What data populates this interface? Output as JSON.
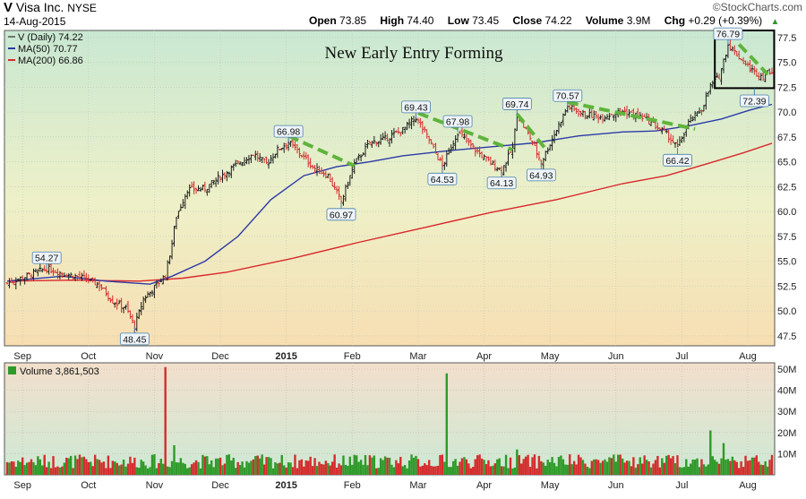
{
  "header": {
    "symbol": "V",
    "company": "Visa Inc.",
    "exchange": "NYSE",
    "date": "14-Aug-2015",
    "open_label": "Open",
    "open": "73.85",
    "high_label": "High",
    "high": "74.40",
    "low_label": "Low",
    "low": "73.45",
    "close_label": "Close",
    "close": "74.22",
    "volume_label": "Volume",
    "volume": "3.9M",
    "chg_label": "Chg",
    "chg": "+0.29 (+0.39%)",
    "brand": "©StockCharts.com"
  },
  "legend": {
    "price": "V (Daily) 74.22",
    "ma50": "MA(50) 70.77",
    "ma200": "MA(200) 66.86",
    "volume": "Volume 3,861,503"
  },
  "chart_data": {
    "type": "line",
    "title": "New Early Entry Forming",
    "price_axis": {
      "ticks": [
        "77.5",
        "75.0",
        "72.5",
        "70.0",
        "67.5",
        "65.0",
        "62.5",
        "60.0",
        "57.5",
        "55.0",
        "52.5",
        "50.0",
        "47.5"
      ],
      "ylim": [
        46.5,
        78.2
      ]
    },
    "volume_axis": {
      "ticks": [
        "50M",
        "40M",
        "30M",
        "20M",
        "10M"
      ],
      "ylim": [
        0,
        53
      ]
    },
    "x_ticks": [
      "Sep",
      "Oct",
      "Nov",
      "Dec",
      "2015",
      "Feb",
      "Mar",
      "Apr",
      "May",
      "Jun",
      "Jul",
      "Aug"
    ],
    "x_tick_days": [
      7,
      37,
      67,
      97,
      127,
      157,
      187,
      217,
      247,
      277,
      307,
      337
    ],
    "day_range": [
      0,
      348
    ],
    "price_path": [
      [
        0,
        52.8
      ],
      [
        10,
        53.6
      ],
      [
        18,
        54.27
      ],
      [
        25,
        53.8
      ],
      [
        35,
        53.3
      ],
      [
        42,
        52.6
      ],
      [
        48,
        51.0
      ],
      [
        54,
        50.3
      ],
      [
        58,
        48.45
      ],
      [
        62,
        51.2
      ],
      [
        68,
        52.6
      ],
      [
        72,
        53.6
      ],
      [
        75,
        56.8
      ],
      [
        77,
        59.5
      ],
      [
        82,
        62.2
      ],
      [
        90,
        62.3
      ],
      [
        97,
        63.5
      ],
      [
        105,
        64.8
      ],
      [
        112,
        65.8
      ],
      [
        118,
        64.8
      ],
      [
        123,
        66.2
      ],
      [
        128,
        66.98
      ],
      [
        133,
        65.9
      ],
      [
        140,
        64.3
      ],
      [
        146,
        63.6
      ],
      [
        152,
        60.97
      ],
      [
        158,
        64.8
      ],
      [
        165,
        66.9
      ],
      [
        172,
        67.3
      ],
      [
        180,
        68.2
      ],
      [
        186,
        69.43
      ],
      [
        192,
        67.2
      ],
      [
        198,
        64.53
      ],
      [
        205,
        67.98
      ],
      [
        212,
        66.4
      ],
      [
        218,
        65.2
      ],
      [
        225,
        64.13
      ],
      [
        230,
        66.4
      ],
      [
        232,
        69.74
      ],
      [
        238,
        67.4
      ],
      [
        243,
        64.93
      ],
      [
        248,
        67.3
      ],
      [
        255,
        70.57
      ],
      [
        262,
        69.8
      ],
      [
        270,
        69.5
      ],
      [
        280,
        70.1
      ],
      [
        290,
        69.4
      ],
      [
        300,
        67.8
      ],
      [
        305,
        66.42
      ],
      [
        310,
        68.9
      ],
      [
        316,
        70.3
      ],
      [
        320,
        72.6
      ],
      [
        324,
        73.6
      ],
      [
        328,
        76.79
      ],
      [
        332,
        75.8
      ],
      [
        336,
        74.8
      ],
      [
        340,
        74.0
      ],
      [
        344,
        73.6
      ],
      [
        348,
        74.22
      ]
    ],
    "series": [
      {
        "name": "V (Daily)",
        "close": 74.22
      },
      {
        "name": "MA(50)",
        "last": 70.77,
        "color": "#2b3aa7",
        "values": [
          [
            0,
            53.0
          ],
          [
            25,
            53.5
          ],
          [
            45,
            53.0
          ],
          [
            65,
            52.7
          ],
          [
            75,
            53.5
          ],
          [
            90,
            55.0
          ],
          [
            105,
            57.5
          ],
          [
            120,
            61.2
          ],
          [
            135,
            63.6
          ],
          [
            150,
            64.5
          ],
          [
            165,
            65.0
          ],
          [
            180,
            65.6
          ],
          [
            200,
            66.1
          ],
          [
            220,
            66.5
          ],
          [
            240,
            66.9
          ],
          [
            260,
            67.6
          ],
          [
            280,
            68.0
          ],
          [
            295,
            68.1
          ],
          [
            310,
            68.6
          ],
          [
            325,
            69.3
          ],
          [
            338,
            70.2
          ],
          [
            348,
            70.77
          ]
        ]
      },
      {
        "name": "MA(200)",
        "last": 66.86,
        "color": "#d8282c",
        "values": [
          [
            0,
            53.0
          ],
          [
            30,
            53.1
          ],
          [
            60,
            53.0
          ],
          [
            80,
            53.3
          ],
          [
            100,
            53.9
          ],
          [
            130,
            55.3
          ],
          [
            160,
            56.9
          ],
          [
            190,
            58.4
          ],
          [
            220,
            59.9
          ],
          [
            250,
            61.2
          ],
          [
            280,
            62.8
          ],
          [
            300,
            63.6
          ],
          [
            320,
            64.9
          ],
          [
            335,
            65.9
          ],
          [
            348,
            66.86
          ]
        ]
      }
    ],
    "annotations": [
      {
        "day": 18,
        "value": 54.27,
        "label": "54.27",
        "pos": "above"
      },
      {
        "day": 58,
        "value": 48.45,
        "label": "48.45",
        "pos": "below"
      },
      {
        "day": 128,
        "value": 66.98,
        "label": "66.98",
        "pos": "above"
      },
      {
        "day": 152,
        "value": 60.97,
        "label": "60.97",
        "pos": "below"
      },
      {
        "day": 186,
        "value": 69.43,
        "label": "69.43",
        "pos": "above"
      },
      {
        "day": 205,
        "value": 67.98,
        "label": "67.98",
        "pos": "above"
      },
      {
        "day": 198,
        "value": 64.53,
        "label": "64.53",
        "pos": "below"
      },
      {
        "day": 225,
        "value": 64.13,
        "label": "64.13",
        "pos": "below"
      },
      {
        "day": 232,
        "value": 69.74,
        "label": "69.74",
        "pos": "above"
      },
      {
        "day": 243,
        "value": 64.93,
        "label": "64.93",
        "pos": "below"
      },
      {
        "day": 255,
        "value": 70.57,
        "label": "70.57",
        "pos": "above"
      },
      {
        "day": 305,
        "value": 66.42,
        "label": "66.42",
        "pos": "below"
      },
      {
        "day": 328,
        "value": 76.79,
        "label": "76.79",
        "pos": "above"
      },
      {
        "day": 340,
        "value": 72.39,
        "label": "72.39",
        "pos": "below"
      }
    ],
    "trendlines": [
      {
        "from": [
          128,
          67.6
        ],
        "to": [
          158,
          64.6
        ]
      },
      {
        "from": [
          187,
          69.9
        ],
        "to": [
          230,
          66.2
        ]
      },
      {
        "from": [
          232,
          69.8
        ],
        "to": [
          245,
          66.3
        ]
      },
      {
        "from": [
          255,
          71.0
        ],
        "to": [
          313,
          68.3
        ]
      },
      {
        "from": [
          333,
          76.8
        ],
        "to": [
          346,
          73.8
        ]
      }
    ],
    "box": {
      "day_from": 322,
      "day_to": 349,
      "value_from": 72.4,
      "value_to": 78.2
    },
    "volume_spikes": [
      [
        72,
        51
      ],
      [
        76,
        14
      ],
      [
        200,
        48
      ],
      [
        232,
        12
      ],
      [
        320,
        21
      ],
      [
        326,
        15
      ],
      [
        336,
        9
      ]
    ],
    "volume_base": 7.5,
    "colors": {
      "up": "#2f9a2a",
      "down": "#d42d2d",
      "trend": "#5fb43b",
      "price_bar": "#111111"
    }
  }
}
